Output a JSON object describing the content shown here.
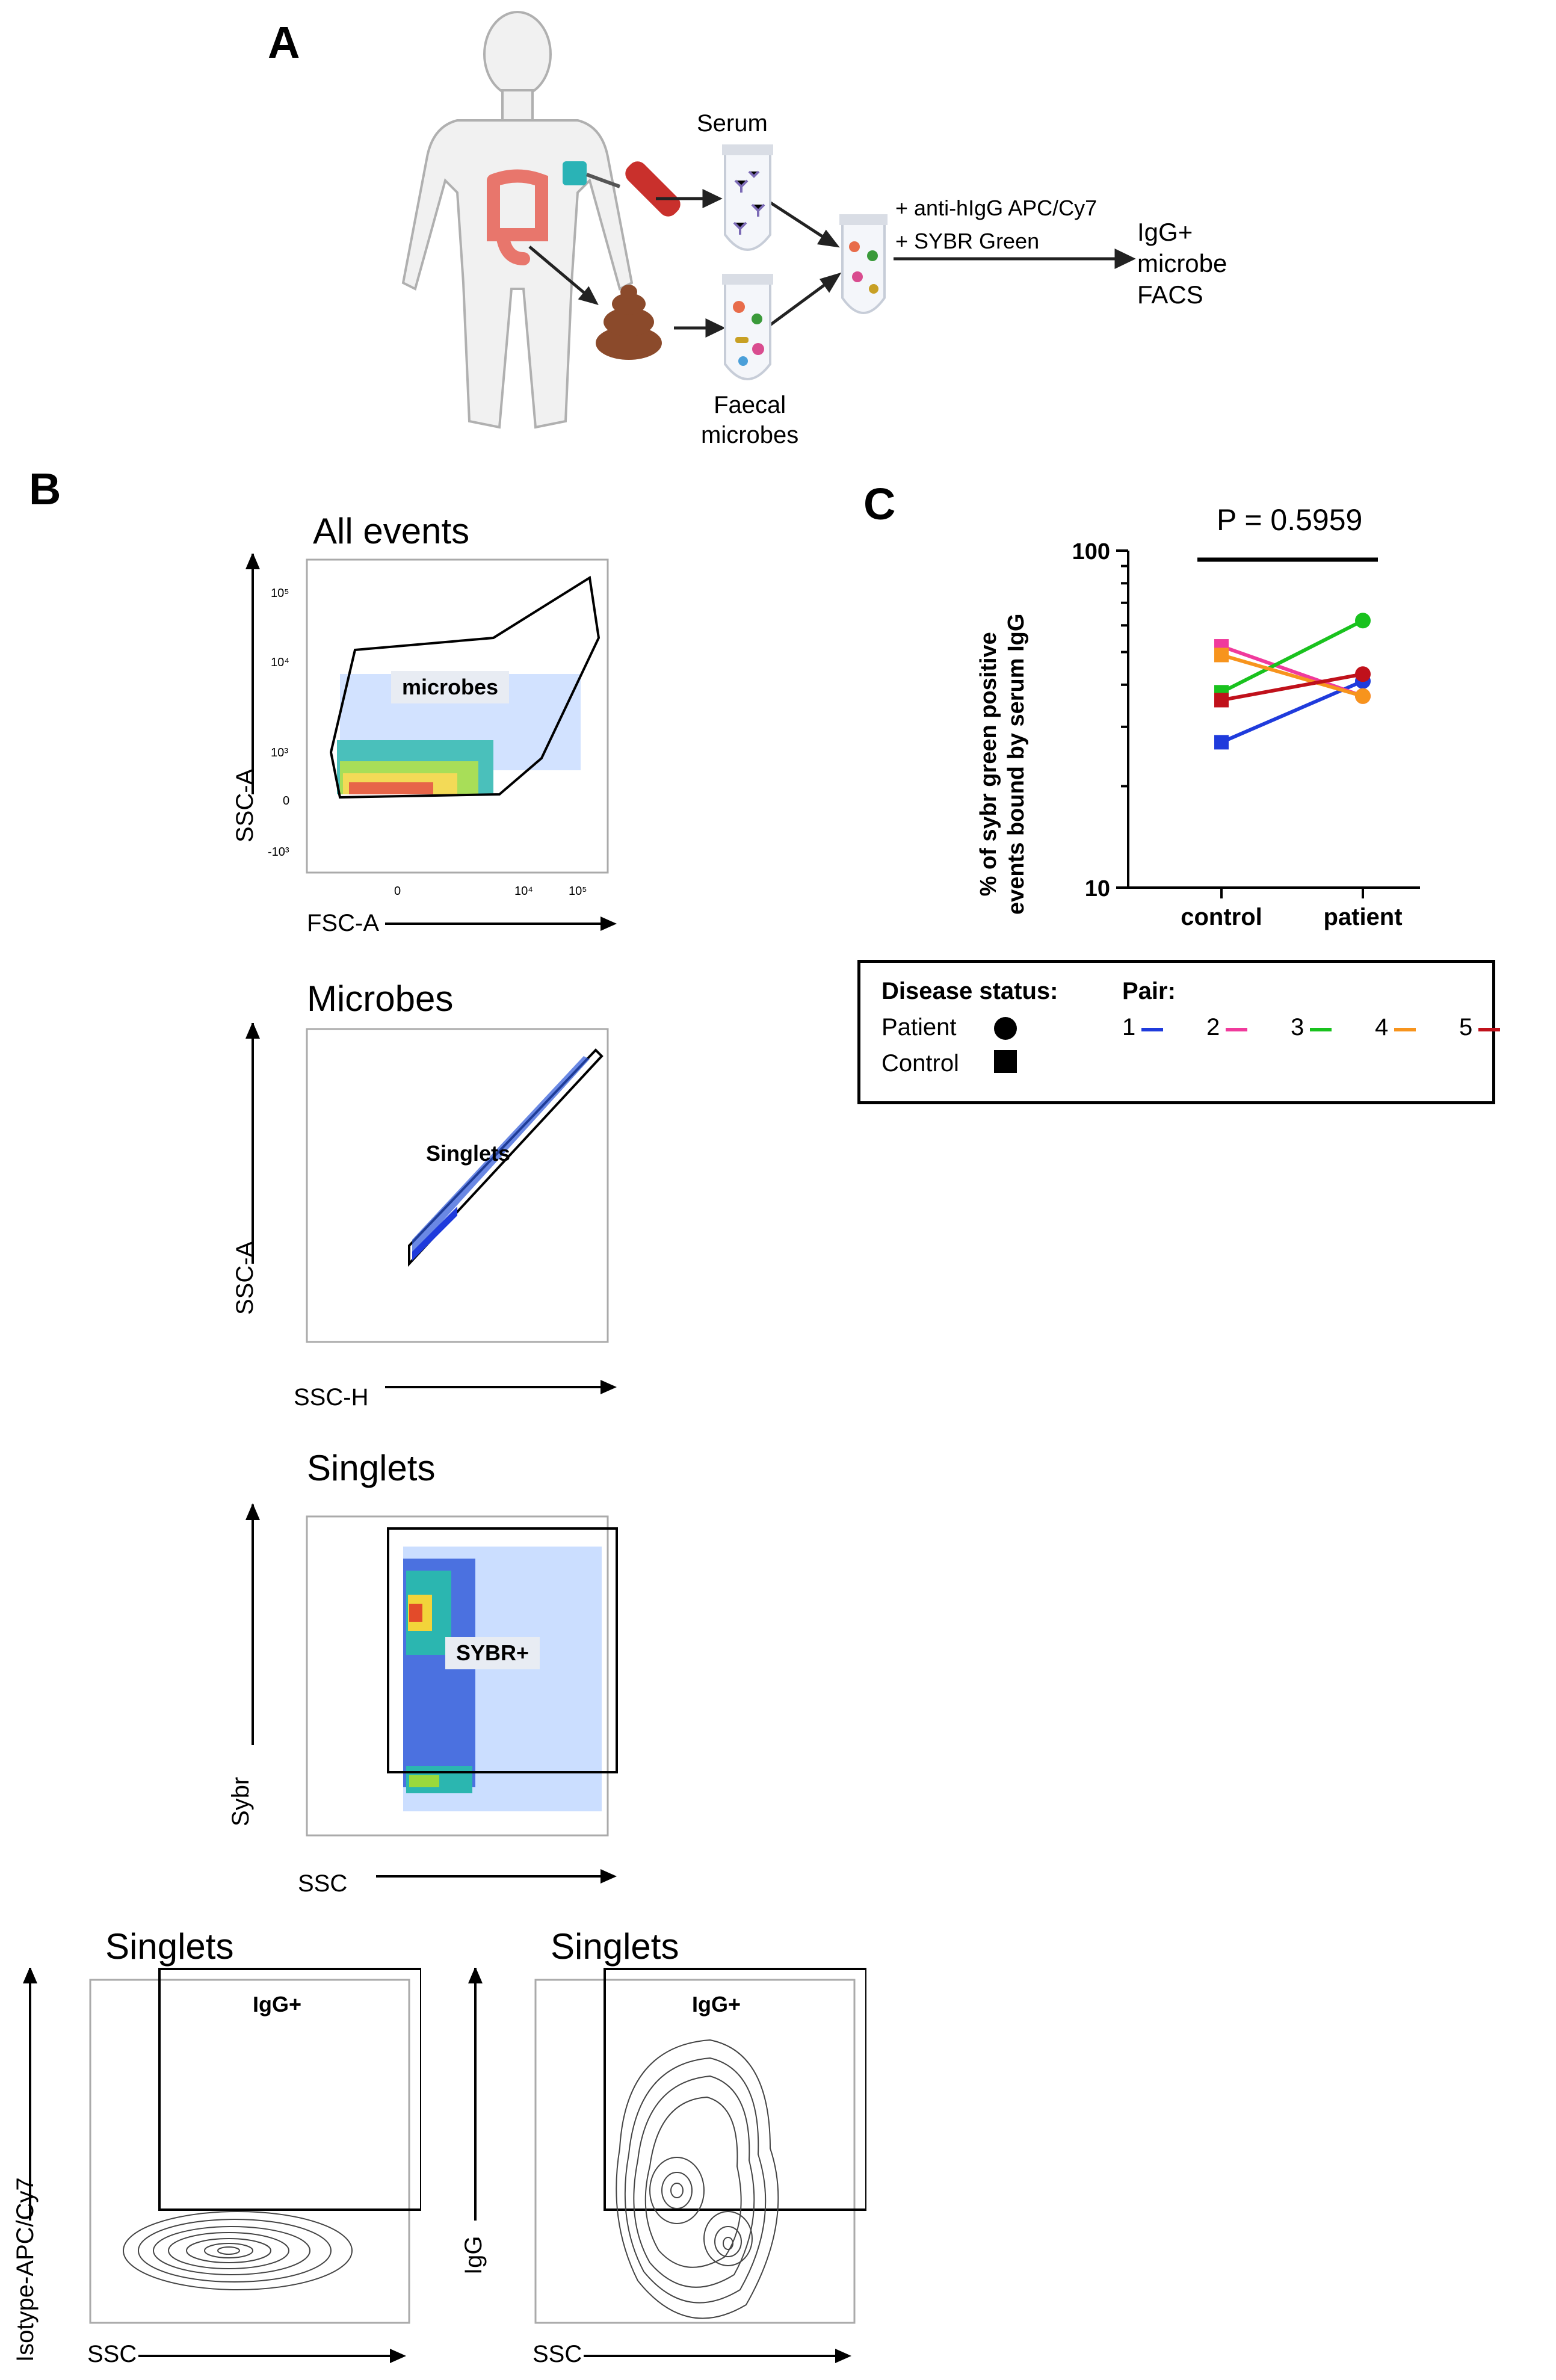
{
  "panels": {
    "A": "A",
    "B": "B",
    "C": "C"
  },
  "panelA": {
    "serum_label": "Serum",
    "faecal_label_line1": "Faecal",
    "faecal_label_line2": "microbes",
    "reagent1": "+ anti-hIgG APC/Cy7",
    "reagent2": "+ SYBR Green",
    "result_line1": "IgG+",
    "result_line2": "microbe",
    "result_line3": "FACS"
  },
  "facs": {
    "p1": {
      "title": "All events",
      "xlabel": "FSC-A",
      "ylabel": "SSC-A",
      "gate": "microbes"
    },
    "p2": {
      "title": "Microbes",
      "xlabel": "SSC-H",
      "ylabel": "SSC-A",
      "gate": "Singlets"
    },
    "p3": {
      "title": "Singlets",
      "xlabel": "SSC",
      "ylabel": "Sybr",
      "gate": "SYBR+"
    },
    "p4": {
      "title": "Singlets",
      "xlabel": "SSC",
      "ylabel": "Isotype-APC/Cy7",
      "gate": "IgG+"
    },
    "p5": {
      "title": "Singlets",
      "xlabel": "SSC",
      "ylabel": "IgG",
      "gate": "IgG+"
    },
    "ticks": {
      "t105": "10⁵",
      "t104": "10⁴",
      "t103": "10³",
      "t0": "0",
      "tneg": "-10³"
    }
  },
  "chart_data": {
    "type": "line",
    "title": "P = 0.5959",
    "ylabel_line1": "% of sybr green positive",
    "ylabel_line2": "events bound by serum IgG",
    "yscale": "log",
    "ylim": [
      10,
      100
    ],
    "yticks": [
      "10",
      "100"
    ],
    "categories": [
      "control",
      "patient"
    ],
    "series": [
      {
        "name": "1",
        "color": "#1f3bdc",
        "values": [
          27,
          41
        ]
      },
      {
        "name": "2",
        "color": "#f03a9c",
        "values": [
          52,
          37
        ]
      },
      {
        "name": "3",
        "color": "#19c21e",
        "values": [
          38,
          62
        ]
      },
      {
        "name": "4",
        "color": "#f7941d",
        "values": [
          49,
          37
        ]
      },
      {
        "name": "5",
        "color": "#c0111b",
        "values": [
          36,
          43
        ]
      }
    ]
  },
  "legend": {
    "disease_status_label": "Disease status:",
    "patient_label": "Patient",
    "control_label": "Control",
    "pair_label": "Pair:"
  }
}
